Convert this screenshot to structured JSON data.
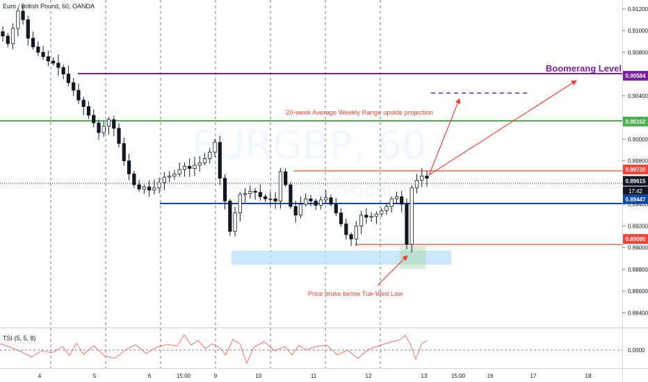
{
  "header": {
    "title": "Euro / British Pound, 60, OANDA"
  },
  "watermark": {
    "symbol": "EURGBP, 60",
    "description": "Euro / British Pound"
  },
  "chart_data": {
    "type": "candlestick",
    "title": "Euro / British Pound, 60, OANDA",
    "ylim": [
      0.883,
      0.9125
    ],
    "y_ticks": [
      "0.91200",
      "0.91000",
      "0.90800",
      "0.90400",
      "0.90000",
      "0.89800",
      "0.89400",
      "0.89200",
      "0.89000",
      "0.88800",
      "0.88600",
      "0.88400"
    ],
    "x_ticks": [
      "4",
      "5",
      "6",
      "15:00",
      "9",
      "10",
      "11",
      "12",
      "13",
      "15:00",
      "16",
      "17",
      "18"
    ],
    "price_lines": [
      {
        "name": "boomerang",
        "value": 0.90584,
        "label": "0.90584",
        "color": "#7b1fa2"
      },
      {
        "name": "green-level",
        "value": 0.90162,
        "label": "0.90162",
        "color": "#4caf50"
      },
      {
        "name": "red-high",
        "value": 0.8972,
        "label": "0.89720",
        "color": "#f44336"
      },
      {
        "name": "current",
        "value": 0.89615,
        "label": "0.89615",
        "color": "#131722"
      },
      {
        "name": "blue-level",
        "value": 0.89447,
        "label": "0.89447",
        "color": "#0d47a1"
      },
      {
        "name": "red-low",
        "value": 0.8908,
        "label": "0.89080",
        "color": "#f44336"
      }
    ],
    "countdown": "17:42",
    "annotations": [
      {
        "text": "Boomerang Level",
        "color": "#7b1fa2"
      },
      {
        "text": "20-week Average Weekly Range upside projection",
        "color": "#f44336"
      },
      {
        "text": "Price broke below Tue-Wed Low",
        "color": "#f44336"
      }
    ],
    "zones": [
      {
        "name": "tue-wed-low-zone",
        "y_from": 0.8895,
        "y_to": 0.8902,
        "color": "#bbdefb"
      }
    ],
    "indicator": {
      "name": "TSI (5, 5, 8)",
      "tick": "0.0000"
    },
    "series": [
      {
        "name": "EURGBP",
        "close": [
          0.9095,
          0.9088,
          0.9102,
          0.9118,
          0.911,
          0.9093,
          0.9085,
          0.908,
          0.9076,
          0.9072,
          0.907,
          0.9066,
          0.906,
          0.9052,
          0.9045,
          0.9036,
          0.903,
          0.9022,
          0.9015,
          0.9006,
          0.9012,
          0.9018,
          0.901,
          0.8996,
          0.898,
          0.8968,
          0.8958,
          0.8954,
          0.8956,
          0.8953,
          0.8955,
          0.896,
          0.8965,
          0.8966,
          0.8968,
          0.8972,
          0.8975,
          0.8973,
          0.8976,
          0.8978,
          0.8982,
          0.8988,
          0.8997,
          0.8964,
          0.8943,
          0.8915,
          0.8932,
          0.8949,
          0.895,
          0.8952,
          0.8951,
          0.8947,
          0.8945,
          0.8945,
          0.8943,
          0.897,
          0.8958,
          0.8938,
          0.893,
          0.894,
          0.8945,
          0.8943,
          0.8939,
          0.8944,
          0.8946,
          0.894,
          0.8932,
          0.8922,
          0.8912,
          0.8908,
          0.892,
          0.893,
          0.8928,
          0.8929,
          0.8931,
          0.8934,
          0.8938,
          0.8945,
          0.8947,
          0.894,
          0.8903,
          0.8955,
          0.8962,
          0.8966,
          0.8964
        ]
      }
    ]
  }
}
